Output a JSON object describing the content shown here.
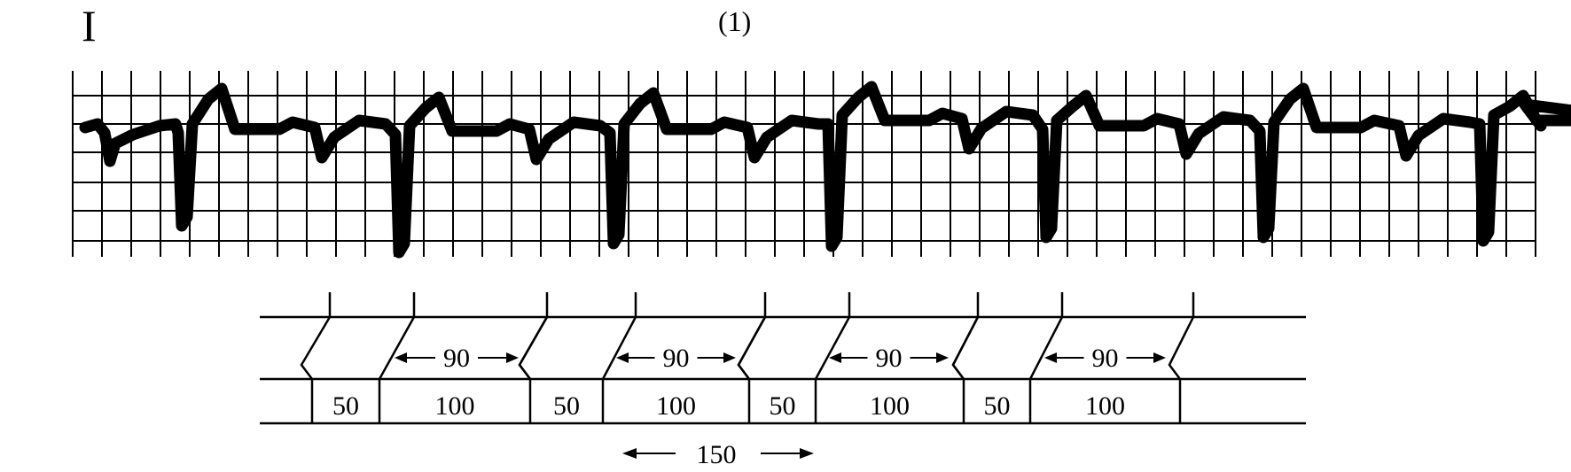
{
  "figure": {
    "lead": "I",
    "panel": "(1)"
  },
  "colors": {
    "ink": "#000000",
    "paper": "#ffffff"
  },
  "ladder": {
    "upper_interval_label": "90",
    "lower_cells": [
      {
        "label": "50",
        "kind": "short"
      },
      {
        "label": "100",
        "kind": "long"
      },
      {
        "label": "50",
        "kind": "short"
      },
      {
        "label": "100",
        "kind": "long"
      },
      {
        "label": "50",
        "kind": "short"
      },
      {
        "label": "100",
        "kind": "long"
      },
      {
        "label": "50",
        "kind": "short"
      },
      {
        "label": "100",
        "kind": "long"
      }
    ],
    "upper_intervals": [
      "90",
      "90",
      "90",
      "90"
    ],
    "cycle_label": "150"
  }
}
